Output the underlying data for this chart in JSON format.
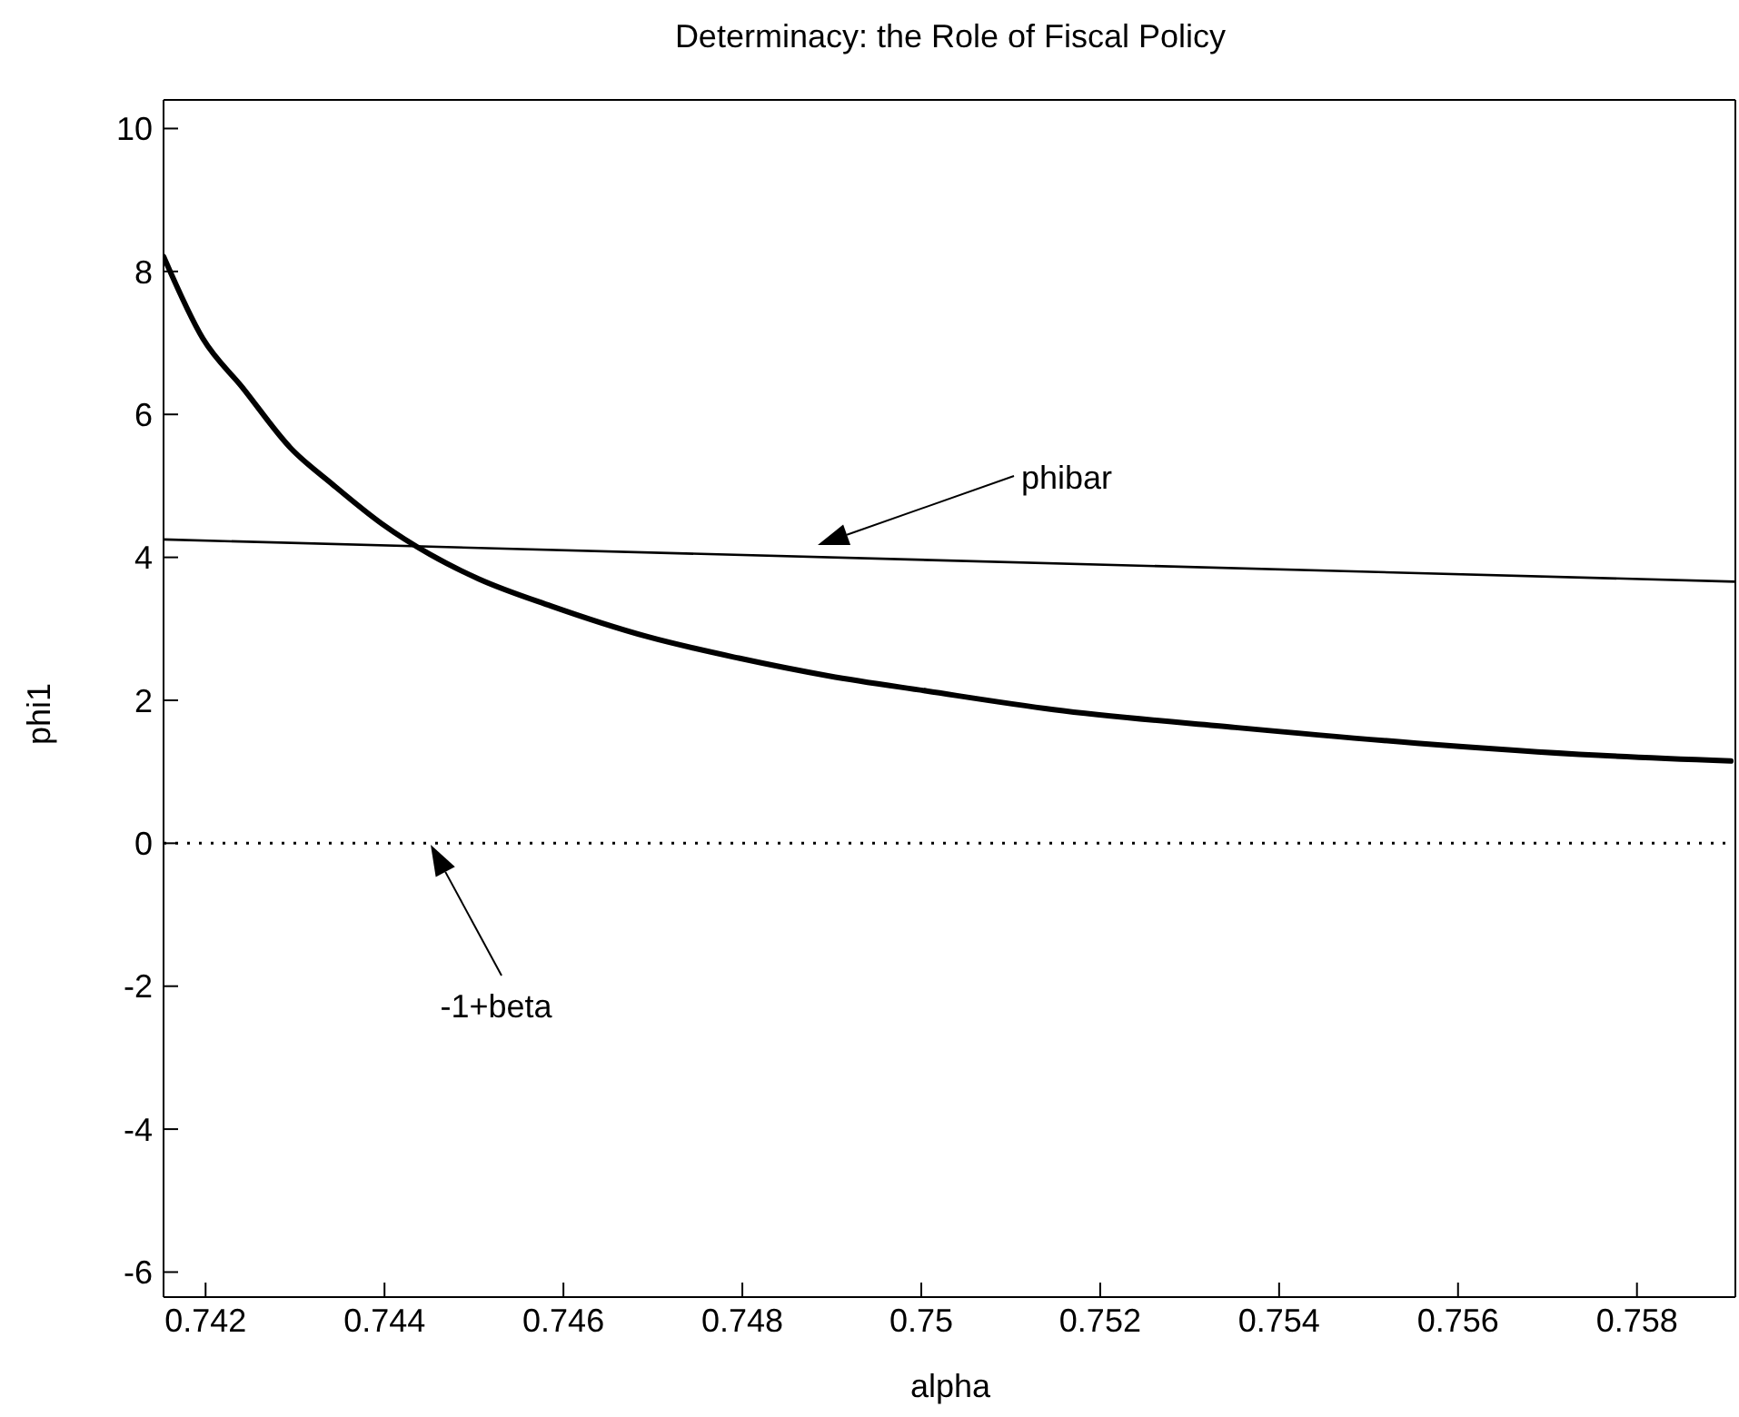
{
  "chart_data": {
    "type": "line",
    "title": "Determinacy: the Role of Fiscal Policy",
    "xlabel": "alpha",
    "ylabel": "phi1",
    "xlim": [
      0.74153,
      0.7591
    ],
    "ylim": [
      -6.35,
      10.4
    ],
    "xticks": [
      0.742,
      0.744,
      0.746,
      0.748,
      0.75,
      0.752,
      0.754,
      0.756,
      0.758
    ],
    "yticks": [
      -6,
      -4,
      -2,
      0,
      2,
      4,
      6,
      8,
      10
    ],
    "marker": "none",
    "line_style": "solid",
    "series": [
      {
        "color": "#000000",
        "x": [
          0.74153,
          0.74197,
          0.74241,
          0.74295,
          0.74342,
          0.74397,
          0.74451,
          0.74505,
          0.74586,
          0.74694,
          0.74796,
          0.74897,
          0.75006,
          0.75148,
          0.75351,
          0.75554,
          0.75757,
          0.75905
        ],
        "values": [
          8.21,
          7.06,
          6.38,
          5.53,
          5.02,
          4.47,
          4.04,
          3.7,
          3.32,
          2.89,
          2.59,
          2.34,
          2.13,
          1.87,
          1.62,
          1.4,
          1.23,
          1.15
        ]
      },
      {
        "color": "#000000",
        "x": [
          0.74153,
          0.7591
        ],
        "values": [
          4.25,
          3.66
        ]
      }
    ],
    "ref_lines": [
      {
        "axis": "y",
        "value": 0,
        "line_style": "dotted",
        "color": "#000000"
      }
    ],
    "annotations": [
      "phibar",
      "-1+beta"
    ]
  }
}
